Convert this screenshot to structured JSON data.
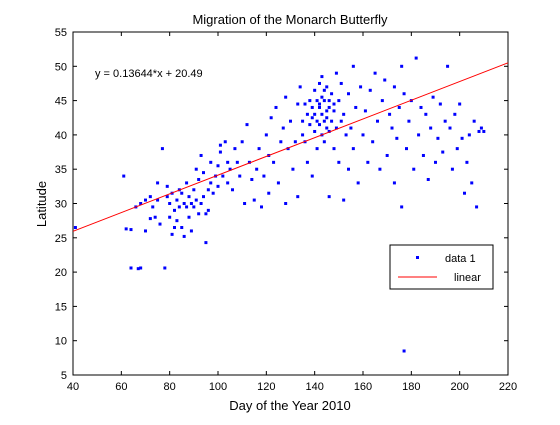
{
  "chart_data": {
    "type": "scatter",
    "title": "Migration of the Monarch Butterfly",
    "xlabel": "Day of the Year 2010",
    "ylabel": "Latitude",
    "xlim": [
      40,
      220
    ],
    "ylim": [
      5,
      55
    ],
    "xticks": [
      40,
      60,
      80,
      100,
      120,
      140,
      160,
      180,
      200,
      220
    ],
    "yticks": [
      5,
      10,
      15,
      20,
      25,
      30,
      35,
      40,
      45,
      50,
      55
    ],
    "grid": false,
    "legend_position": "right",
    "annotation": "y = 0.13644*x + 20.49",
    "colors": {
      "points": "#0000ff",
      "fit": "#ff0000"
    },
    "series": [
      {
        "name": "data 1",
        "kind": "scatter",
        "marker": "dot",
        "points": [
          [
            41,
            26.5
          ],
          [
            61,
            34
          ],
          [
            62,
            26.3
          ],
          [
            64,
            26.2
          ],
          [
            64,
            20.6
          ],
          [
            66,
            29.5
          ],
          [
            67,
            20.5
          ],
          [
            68,
            30
          ],
          [
            68,
            20.6
          ],
          [
            70,
            30.5
          ],
          [
            70,
            26
          ],
          [
            72,
            27.8
          ],
          [
            72,
            31
          ],
          [
            73,
            29.5
          ],
          [
            74,
            28
          ],
          [
            75,
            30.5
          ],
          [
            75,
            33
          ],
          [
            76,
            27
          ],
          [
            77,
            38
          ],
          [
            78,
            20.6
          ],
          [
            79,
            31
          ],
          [
            79,
            32.5
          ],
          [
            80,
            28
          ],
          [
            80,
            30
          ],
          [
            81,
            25.5
          ],
          [
            81,
            31.5
          ],
          [
            82,
            29
          ],
          [
            82,
            26.5
          ],
          [
            83,
            30.5
          ],
          [
            83,
            27.5
          ],
          [
            84,
            32
          ],
          [
            84,
            29.5
          ],
          [
            85,
            26.5
          ],
          [
            85,
            31.5
          ],
          [
            86,
            30
          ],
          [
            86,
            25.2
          ],
          [
            87,
            29.5
          ],
          [
            87,
            33
          ],
          [
            88,
            31
          ],
          [
            88,
            28
          ],
          [
            89,
            30
          ],
          [
            89,
            26
          ],
          [
            90,
            32
          ],
          [
            90,
            29.5
          ],
          [
            91,
            35
          ],
          [
            91,
            30.5
          ],
          [
            92,
            28.5
          ],
          [
            92,
            33.5
          ],
          [
            93,
            37
          ],
          [
            93,
            30
          ],
          [
            94,
            31
          ],
          [
            94,
            34.5
          ],
          [
            95,
            24.3
          ],
          [
            95,
            28.5
          ],
          [
            96,
            32
          ],
          [
            96,
            29
          ],
          [
            97,
            36
          ],
          [
            97,
            33
          ],
          [
            98,
            31.5
          ],
          [
            99,
            34
          ],
          [
            100,
            35.5
          ],
          [
            100,
            32.5
          ],
          [
            101,
            38.5
          ],
          [
            101,
            37.5
          ],
          [
            102,
            34
          ],
          [
            103,
            39
          ],
          [
            104,
            36
          ],
          [
            104,
            33
          ],
          [
            105,
            35
          ],
          [
            106,
            32
          ],
          [
            107,
            38
          ],
          [
            108,
            36
          ],
          [
            109,
            34
          ],
          [
            110,
            39
          ],
          [
            111,
            30
          ],
          [
            112,
            41.5
          ],
          [
            113,
            36
          ],
          [
            114,
            33.5
          ],
          [
            115,
            30.5
          ],
          [
            116,
            35
          ],
          [
            117,
            38
          ],
          [
            118,
            29.5
          ],
          [
            119,
            34
          ],
          [
            120,
            40
          ],
          [
            121,
            37
          ],
          [
            121,
            31.5
          ],
          [
            122,
            42.5
          ],
          [
            123,
            36
          ],
          [
            124,
            44
          ],
          [
            125,
            33
          ],
          [
            126,
            39
          ],
          [
            127,
            41
          ],
          [
            128,
            30
          ],
          [
            128,
            45.5
          ],
          [
            129,
            38
          ],
          [
            130,
            42
          ],
          [
            131,
            35
          ],
          [
            132,
            39
          ],
          [
            133,
            44.5
          ],
          [
            133,
            31
          ],
          [
            134,
            47
          ],
          [
            135,
            42
          ],
          [
            135,
            40
          ],
          [
            136,
            44.5
          ],
          [
            136,
            39
          ],
          [
            137,
            43
          ],
          [
            137,
            36
          ],
          [
            138,
            45
          ],
          [
            138,
            41.5
          ],
          [
            139,
            44
          ],
          [
            139,
            42.5
          ],
          [
            139,
            34
          ],
          [
            140,
            46.5
          ],
          [
            140,
            43
          ],
          [
            140,
            40.5
          ],
          [
            141,
            45
          ],
          [
            141,
            42
          ],
          [
            141,
            38
          ],
          [
            142,
            47.5
          ],
          [
            142,
            44
          ],
          [
            142,
            41.5
          ],
          [
            142,
            44.5
          ],
          [
            143,
            48.5
          ],
          [
            143,
            43
          ],
          [
            143,
            40
          ],
          [
            143,
            45.5
          ],
          [
            144,
            42
          ],
          [
            144,
            45
          ],
          [
            144,
            39
          ],
          [
            144,
            46.5
          ],
          [
            145,
            43.5
          ],
          [
            145,
            41
          ],
          [
            145,
            47
          ],
          [
            145,
            42.5
          ],
          [
            146,
            44
          ],
          [
            146,
            40.5
          ],
          [
            146,
            45
          ],
          [
            146,
            31
          ],
          [
            147,
            42
          ],
          [
            147,
            46
          ],
          [
            148,
            43.5
          ],
          [
            148,
            38
          ],
          [
            148,
            44.5
          ],
          [
            149,
            41
          ],
          [
            149,
            49
          ],
          [
            150,
            45
          ],
          [
            150,
            36
          ],
          [
            151,
            42
          ],
          [
            151,
            47.5
          ],
          [
            152,
            43
          ],
          [
            152,
            30.5
          ],
          [
            153,
            40
          ],
          [
            154,
            46
          ],
          [
            154,
            35
          ],
          [
            155,
            41
          ],
          [
            156,
            50
          ],
          [
            156,
            38
          ],
          [
            157,
            44
          ],
          [
            158,
            33
          ],
          [
            159,
            47
          ],
          [
            160,
            40
          ],
          [
            161,
            43.5
          ],
          [
            162,
            36
          ],
          [
            163,
            46.5
          ],
          [
            164,
            39
          ],
          [
            165,
            49
          ],
          [
            166,
            42
          ],
          [
            167,
            35
          ],
          [
            168,
            45
          ],
          [
            169,
            48
          ],
          [
            170,
            37
          ],
          [
            171,
            43
          ],
          [
            172,
            41
          ],
          [
            173,
            47
          ],
          [
            173,
            33
          ],
          [
            174,
            39.5
          ],
          [
            175,
            44
          ],
          [
            176,
            50
          ],
          [
            176,
            29.5
          ],
          [
            177,
            8.5
          ],
          [
            177,
            46
          ],
          [
            178,
            38
          ],
          [
            179,
            42
          ],
          [
            180,
            45
          ],
          [
            181,
            35
          ],
          [
            182,
            51.2
          ],
          [
            183,
            40
          ],
          [
            184,
            44
          ],
          [
            185,
            37
          ],
          [
            186,
            43
          ],
          [
            187,
            33.5
          ],
          [
            188,
            41
          ],
          [
            189,
            45.5
          ],
          [
            190,
            36
          ],
          [
            191,
            39.5
          ],
          [
            192,
            44.5
          ],
          [
            193,
            37.5
          ],
          [
            194,
            42
          ],
          [
            195,
            50
          ],
          [
            196,
            41
          ],
          [
            197,
            35
          ],
          [
            198,
            43
          ],
          [
            199,
            38
          ],
          [
            200,
            44.5
          ],
          [
            201,
            39.5
          ],
          [
            202,
            31.5
          ],
          [
            203,
            36
          ],
          [
            204,
            40
          ],
          [
            205,
            33
          ],
          [
            206,
            42
          ],
          [
            207,
            29.5
          ],
          [
            208,
            40.5
          ],
          [
            209,
            41
          ],
          [
            210,
            40.5
          ]
        ]
      },
      {
        "name": "linear",
        "kind": "line",
        "slope": 0.13644,
        "intercept": 20.49
      }
    ]
  }
}
